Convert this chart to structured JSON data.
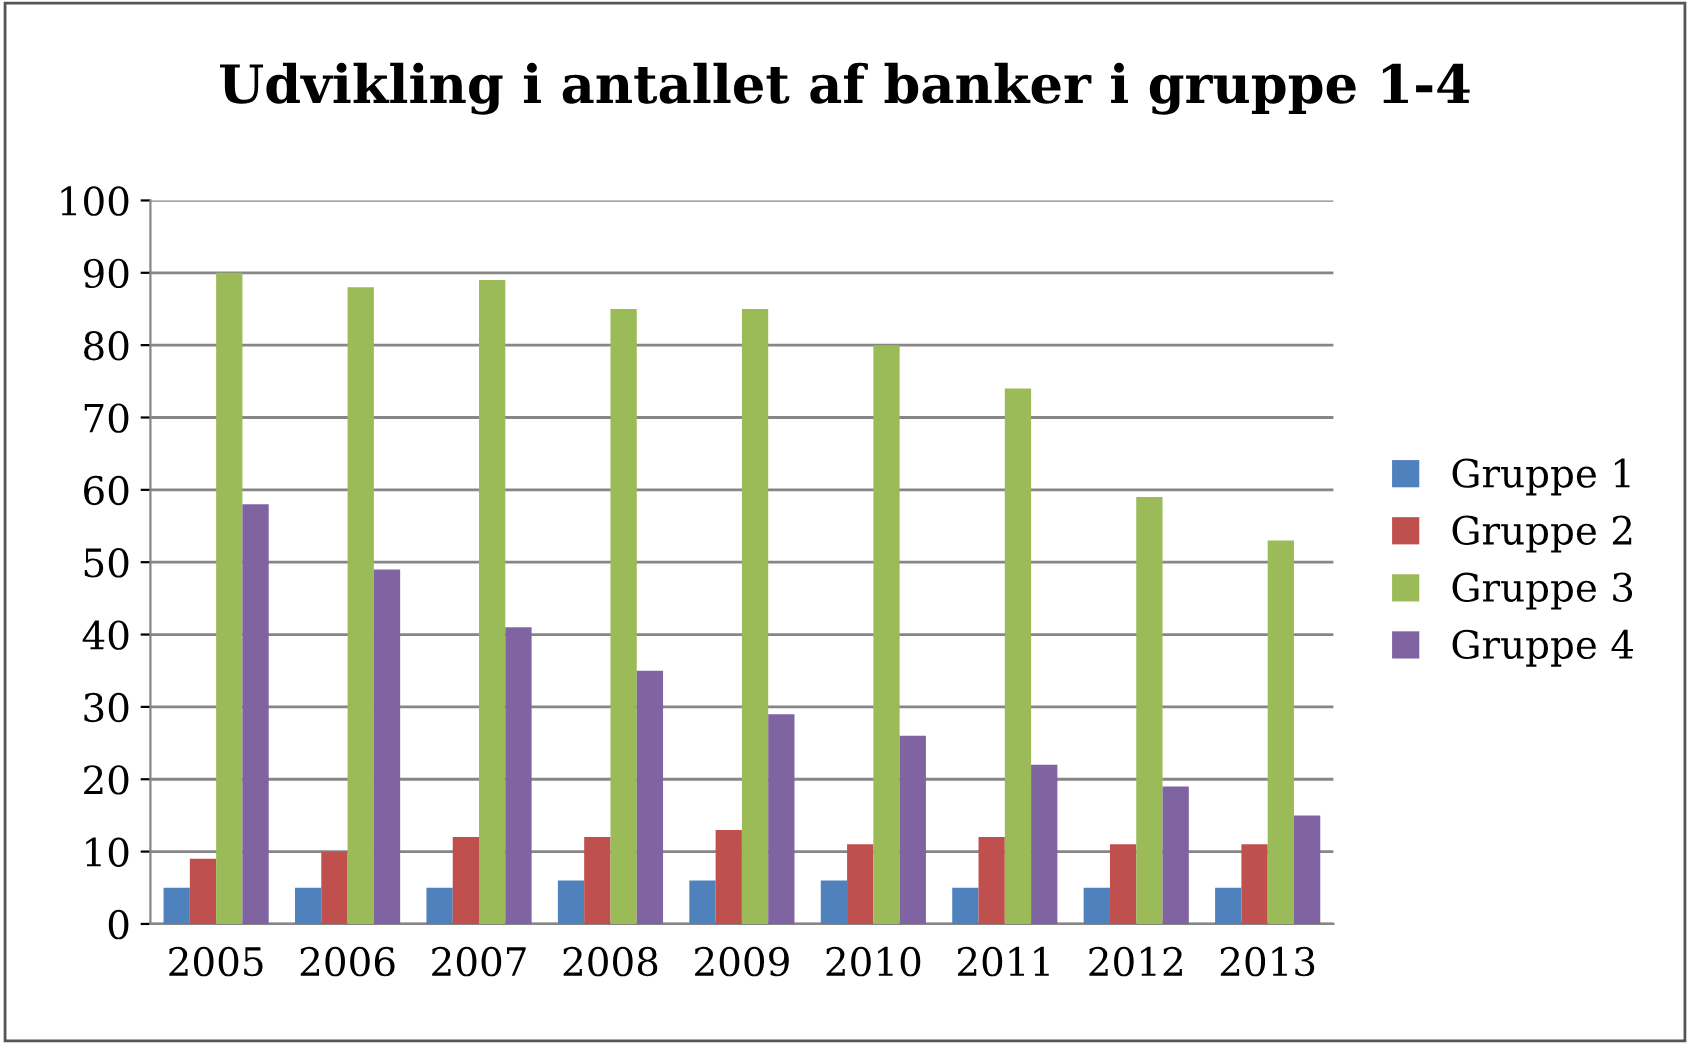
{
  "chart_data": {
    "type": "bar",
    "title": "Udvikling i antallet af banker i gruppe 1-4",
    "categories": [
      "2005",
      "2006",
      "2007",
      "2008",
      "2009",
      "2010",
      "2011",
      "2012",
      "2013"
    ],
    "series": [
      {
        "name": "Gruppe 1",
        "color": "#4f81bd",
        "values": [
          5,
          5,
          5,
          6,
          6,
          6,
          5,
          5,
          5
        ]
      },
      {
        "name": "Gruppe 2",
        "color": "#c0504d",
        "values": [
          9,
          10,
          12,
          12,
          13,
          11,
          12,
          11,
          11
        ]
      },
      {
        "name": "Gruppe 3",
        "color": "#9bbb59",
        "values": [
          90,
          88,
          89,
          85,
          85,
          80,
          74,
          59,
          53
        ]
      },
      {
        "name": "Gruppe 4",
        "color": "#8064a2",
        "values": [
          58,
          49,
          41,
          35,
          29,
          26,
          22,
          19,
          15
        ]
      }
    ],
    "ylim": [
      0,
      100
    ],
    "yticks": [
      0,
      10,
      20,
      30,
      40,
      50,
      60,
      70,
      80,
      90,
      100
    ],
    "grid": "y",
    "legend": "right"
  }
}
